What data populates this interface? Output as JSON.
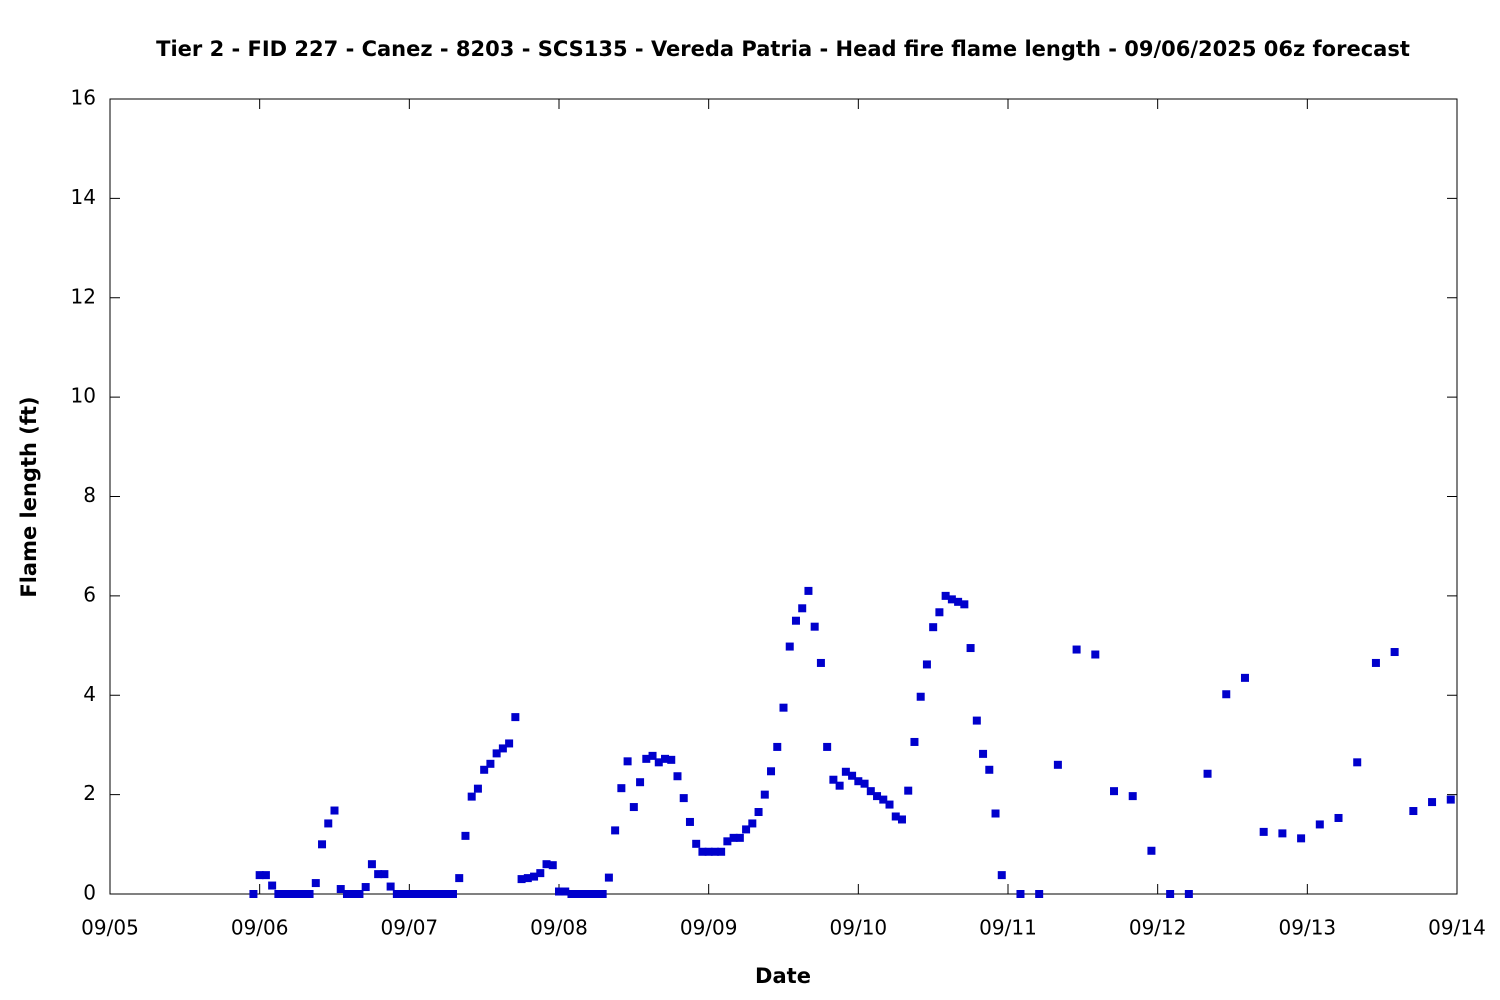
{
  "chart_data": {
    "type": "scatter",
    "title": "Tier 2 - FID 227 - Canez - 8203 - SCS135 - Vereda Patria - Head fire flame length - 09/06/2025 06z forecast",
    "xlabel": "Date",
    "ylabel": "Flame length (ft)",
    "color": "#0000cc",
    "xlim": [
      0,
      216
    ],
    "xticks": [
      {
        "value": 0,
        "label": "09/05"
      },
      {
        "value": 24,
        "label": "09/06"
      },
      {
        "value": 48,
        "label": "09/07"
      },
      {
        "value": 72,
        "label": "09/08"
      },
      {
        "value": 96,
        "label": "09/09"
      },
      {
        "value": 120,
        "label": "09/10"
      },
      {
        "value": 144,
        "label": "09/11"
      },
      {
        "value": 168,
        "label": "09/12"
      },
      {
        "value": 192,
        "label": "09/13"
      },
      {
        "value": 216,
        "label": "09/14"
      }
    ],
    "ylim": [
      0,
      16
    ],
    "yticks": [
      0,
      2,
      4,
      6,
      8,
      10,
      12,
      14,
      16
    ],
    "x": [
      23,
      24,
      25,
      26,
      27,
      28,
      29,
      30,
      31,
      32,
      33,
      34,
      35,
      36,
      37,
      38,
      39,
      40,
      41,
      42,
      43,
      44,
      45,
      46,
      47,
      48,
      49,
      50,
      51,
      52,
      53,
      54,
      55,
      56,
      57,
      58,
      59,
      60,
      61,
      62,
      63,
      64,
      65,
      66,
      67,
      68,
      69,
      70,
      71,
      72,
      73,
      74,
      75,
      76,
      77,
      78,
      79,
      80,
      81,
      82,
      83,
      84,
      85,
      86,
      87,
      88,
      89,
      90,
      91,
      92,
      93,
      94,
      95,
      96,
      97,
      98,
      99,
      100,
      101,
      102,
      103,
      104,
      105,
      106,
      107,
      108,
      109,
      110,
      111,
      112,
      113,
      114,
      115,
      116,
      117,
      118,
      119,
      120,
      121,
      122,
      123,
      124,
      125,
      126,
      127,
      128,
      129,
      130,
      131,
      132,
      133,
      134,
      135,
      136,
      137,
      138,
      139,
      140,
      141,
      142,
      143,
      146,
      149,
      152,
      155,
      158,
      161,
      164,
      167,
      170,
      173,
      176,
      179,
      182,
      185,
      188,
      191,
      194,
      197,
      200,
      203,
      206,
      209,
      212,
      215
    ],
    "values": [
      0,
      0.38,
      0.38,
      0.17,
      0,
      0,
      0,
      0,
      0,
      0,
      0.22,
      1.0,
      1.42,
      1.68,
      0.1,
      0,
      0,
      0,
      0.14,
      0.6,
      0.4,
      0.4,
      0.15,
      0,
      0,
      0,
      0,
      0,
      0,
      0,
      0,
      0,
      0,
      0.32,
      1.17,
      1.96,
      2.12,
      2.5,
      2.62,
      2.83,
      2.93,
      3.03,
      3.56,
      0.3,
      0.32,
      0.35,
      0.42,
      0.6,
      0.58,
      0.05,
      0.05,
      0,
      0,
      0,
      0,
      0,
      0,
      0.33,
      1.28,
      2.13,
      2.67,
      1.75,
      2.25,
      2.72,
      2.78,
      2.65,
      2.72,
      2.7,
      2.37,
      1.93,
      1.45,
      1.01,
      0.85,
      0.85,
      0.85,
      0.85,
      1.06,
      1.13,
      1.13,
      1.3,
      1.42,
      1.65,
      2.0,
      2.47,
      2.96,
      3.75,
      4.98,
      5.5,
      5.75,
      6.1,
      5.38,
      4.65,
      2.96,
      2.3,
      2.18,
      2.46,
      2.38,
      2.27,
      2.22,
      2.07,
      1.97,
      1.9,
      1.8,
      1.56,
      1.5,
      2.08,
      3.06,
      3.97,
      4.62,
      5.37,
      5.67,
      6.0,
      5.93,
      5.88,
      5.83,
      4.95,
      3.49,
      2.82,
      2.5,
      1.62,
      0.38,
      0,
      0,
      2.6,
      4.92,
      4.82,
      2.07,
      1.97,
      0.87,
      0,
      0,
      2.42,
      4.02,
      4.35,
      1.25,
      1.22,
      1.12,
      1.4,
      1.53,
      2.65,
      4.65,
      4.87,
      1.67,
      1.85,
      1.9
    ]
  }
}
